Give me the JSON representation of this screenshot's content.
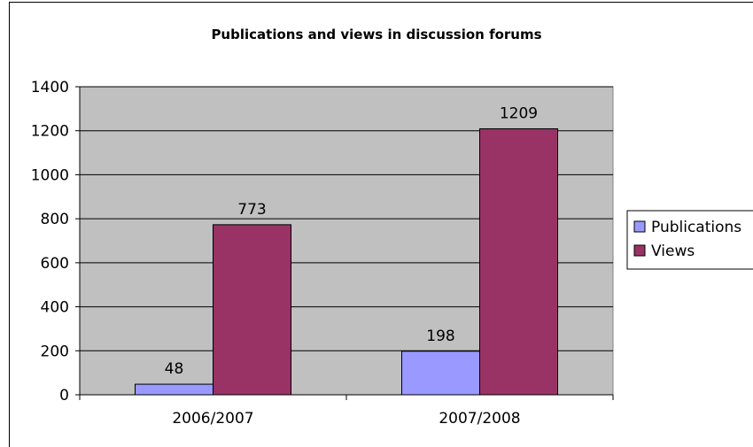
{
  "chart_data": {
    "type": "bar",
    "title": "Publications and views in discussion forums",
    "categories": [
      "2006/2007",
      "2007/2008"
    ],
    "series": [
      {
        "name": "Publications",
        "values": [
          48,
          198
        ],
        "color": "#9999ff"
      },
      {
        "name": "Views",
        "values": [
          773,
          1209
        ],
        "color": "#993366"
      }
    ],
    "ylim": [
      0,
      1400
    ],
    "yticks": [
      0,
      200,
      400,
      600,
      800,
      1000,
      1200,
      1400
    ],
    "grid": true,
    "plot_background": "#c0c0c0",
    "legend": "right",
    "xlabel": "",
    "ylabel": ""
  }
}
